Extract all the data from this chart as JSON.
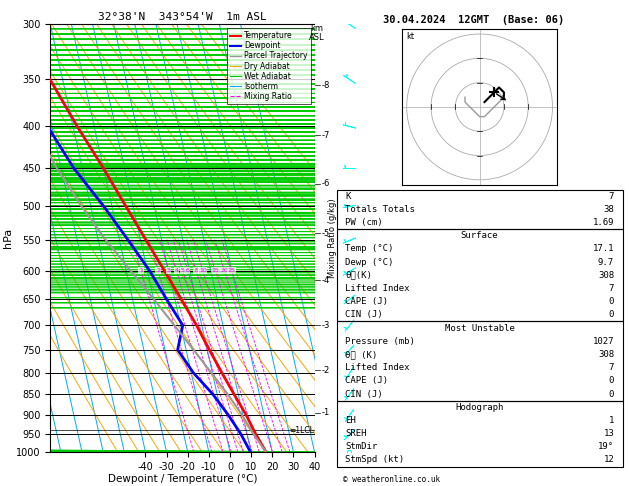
{
  "title_left": "32°38'N  343°54'W  1m ASL",
  "title_right": "30.04.2024  12GMT  (Base: 06)",
  "xlabel": "Dewpoint / Temperature (°C)",
  "ylabel_left": "hPa",
  "pressure_ticks": [
    300,
    350,
    400,
    450,
    500,
    550,
    600,
    650,
    700,
    750,
    800,
    850,
    900,
    950,
    1000
  ],
  "isotherm_color": "#00AAFF",
  "dry_adiabat_color": "#FFA500",
  "wet_adiabat_color": "#00CC00",
  "mixing_ratio_color": "#FF00FF",
  "km_pressures": [
    895,
    795,
    700,
    617,
    540,
    470,
    410,
    356
  ],
  "km_labels": [
    "1",
    "2",
    "3",
    "4",
    "5",
    "6",
    "7",
    "8"
  ],
  "lcl_pressure": 940,
  "temp_profile_p": [
    1000,
    950,
    900,
    850,
    800,
    750,
    700,
    650,
    600,
    550,
    500,
    450,
    400,
    350,
    300
  ],
  "temp_profile_t": [
    17.1,
    14.0,
    11.5,
    8.0,
    4.5,
    1.0,
    -2.5,
    -7.0,
    -12.0,
    -17.5,
    -23.5,
    -30.0,
    -38.0,
    -46.0,
    -52.0
  ],
  "dewp_profile_p": [
    1000,
    950,
    900,
    850,
    800,
    750,
    700,
    650,
    600,
    550,
    500,
    450,
    400,
    350,
    300
  ],
  "dewp_profile_t": [
    9.7,
    7.0,
    3.0,
    -2.0,
    -9.0,
    -14.0,
    -9.0,
    -14.0,
    -19.0,
    -26.0,
    -34.0,
    -44.0,
    -52.0,
    -58.0,
    -62.0
  ],
  "parcel_profile_p": [
    1000,
    950,
    900,
    850,
    800,
    750,
    700,
    650,
    600,
    550,
    500,
    450,
    400,
    350,
    300
  ],
  "parcel_profile_t": [
    17.1,
    13.0,
    9.5,
    5.0,
    -0.5,
    -6.5,
    -13.0,
    -20.0,
    -28.0,
    -36.5,
    -44.5,
    -52.0,
    -58.5,
    -64.0,
    -68.0
  ],
  "temp_color": "#FF0000",
  "dewp_color": "#0000FF",
  "parcel_color": "#999999",
  "wind_p": [
    1000,
    950,
    900,
    850,
    800,
    750,
    700,
    650,
    600,
    550,
    500,
    450,
    400,
    350,
    300
  ],
  "wind_u": [
    1,
    2,
    2,
    3,
    3,
    4,
    4,
    5,
    5,
    5,
    5,
    4,
    4,
    3,
    3
  ],
  "wind_v": [
    1,
    2,
    3,
    4,
    5,
    5,
    5,
    4,
    3,
    2,
    1,
    0,
    -1,
    -2,
    -2
  ],
  "K": 7,
  "Totals_Totals": 38,
  "PW_cm": 1.69,
  "Surface_Temp": 17.1,
  "Surface_Dewp": 9.7,
  "Surface_theta_e": 308,
  "Surface_LI": 7,
  "Surface_CAPE": 0,
  "Surface_CIN": 0,
  "MU_Pressure": 1027,
  "MU_theta_e": 308,
  "MU_LI": 7,
  "MU_CAPE": 0,
  "MU_CIN": 0,
  "EH": 1,
  "SREH": 13,
  "StmDir": 19,
  "StmSpd": 12,
  "skew_amount": 45,
  "pmin": 300,
  "pmax": 1000,
  "xmin": -40,
  "xmax": 40
}
